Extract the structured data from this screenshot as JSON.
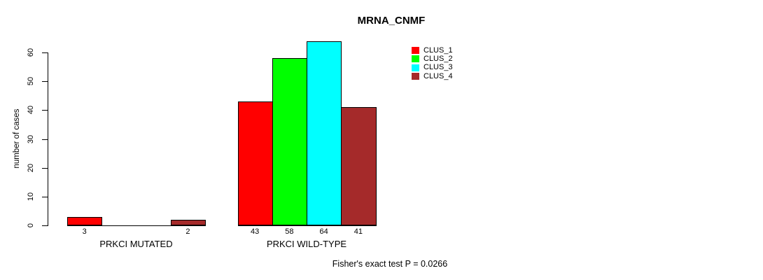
{
  "chart_data": {
    "type": "bar",
    "title": "MRNA_CNMF",
    "ylabel": "number of cases",
    "xlabel": "",
    "ylim": [
      0,
      60
    ],
    "yticks": [
      0,
      10,
      20,
      30,
      40,
      50,
      60
    ],
    "grid": false,
    "legend_position": "top-right",
    "series_names": [
      "CLUS_1",
      "CLUS_2",
      "CLUS_3",
      "CLUS_4"
    ],
    "series_colors": [
      "#FF0000",
      "#00FF00",
      "#00FFFF",
      "#A52A2A"
    ],
    "categories": [
      "PRKCI MUTATED",
      "PRKCI WILD-TYPE"
    ],
    "groups": [
      {
        "label": "PRKCI MUTATED",
        "values": [
          3,
          0,
          0,
          2
        ],
        "bar_labels": [
          "3",
          "",
          "",
          "2"
        ]
      },
      {
        "label": "PRKCI WILD-TYPE",
        "values": [
          43,
          58,
          64,
          41
        ],
        "bar_labels": [
          "43",
          "58",
          "64",
          "41"
        ]
      }
    ],
    "annotation": "Fisher's exact test P = 0.0266"
  }
}
